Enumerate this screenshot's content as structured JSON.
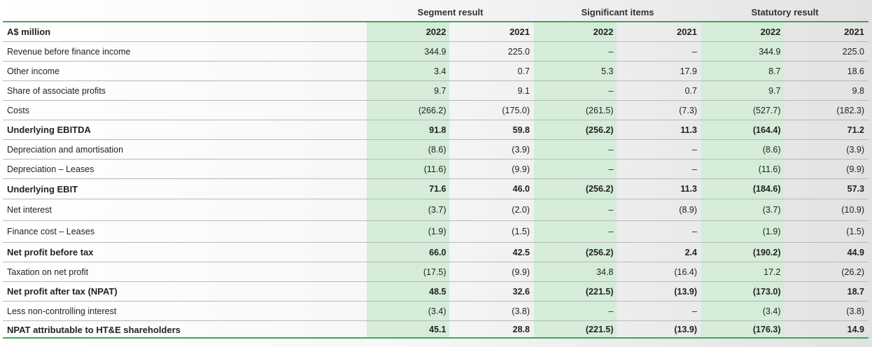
{
  "group_headers": [
    "Segment result",
    "Significant items",
    "Statutory result"
  ],
  "columns": {
    "label": "A$ million",
    "years": [
      "2022",
      "2021",
      "2022",
      "2021",
      "2022",
      "2021"
    ]
  },
  "rows": [
    {
      "label": "Revenue before finance income",
      "bold": false,
      "values": [
        "344.9",
        "225.0",
        "–",
        "–",
        "344.9",
        "225.0"
      ]
    },
    {
      "label": "Other income",
      "bold": false,
      "values": [
        "3.4",
        "0.7",
        "5.3",
        "17.9",
        "8.7",
        "18.6"
      ]
    },
    {
      "label": "Share of associate profits",
      "bold": false,
      "values": [
        "9.7",
        "9.1",
        "–",
        "0.7",
        "9.7",
        "9.8"
      ]
    },
    {
      "label": "Costs",
      "bold": false,
      "values": [
        "(266.2)",
        "(175.0)",
        "(261.5)",
        "(7.3)",
        "(527.7)",
        "(182.3)"
      ]
    },
    {
      "label": "Underlying EBITDA",
      "bold": true,
      "values": [
        "91.8",
        "59.8",
        "(256.2)",
        "11.3",
        "(164.4)",
        "71.2"
      ]
    },
    {
      "label": "Depreciation and amortisation",
      "bold": false,
      "values": [
        "(8.6)",
        "(3.9)",
        "–",
        "–",
        "(8.6)",
        "(3.9)"
      ]
    },
    {
      "label": "Depreciation – Leases",
      "bold": false,
      "values": [
        "(11.6)",
        "(9.9)",
        "–",
        "–",
        "(11.6)",
        "(9.9)"
      ]
    },
    {
      "label": "Underlying EBIT",
      "bold": true,
      "values": [
        "71.6",
        "46.0",
        "(256.2)",
        "11.3",
        "(184.6)",
        "57.3"
      ]
    },
    {
      "label": "Net interest",
      "bold": false,
      "values": [
        "(3.7)",
        "(2.0)",
        "–",
        "(8.9)",
        "(3.7)",
        "(10.9)"
      ]
    },
    {
      "label": "Finance cost – Leases",
      "bold": false,
      "values": [
        "(1.9)",
        "(1.5)",
        "–",
        "–",
        "(1.9)",
        "(1.5)"
      ]
    },
    {
      "label": "Net profit before tax",
      "bold": true,
      "values": [
        "66.0",
        "42.5",
        "(256.2)",
        "2.4",
        "(190.2)",
        "44.9"
      ]
    },
    {
      "label": "Taxation on net profit",
      "bold": false,
      "values": [
        "(17.5)",
        "(9.9)",
        "34.8",
        "(16.4)",
        "17.2",
        "(26.2)"
      ]
    },
    {
      "label": "Net profit after tax (NPAT)",
      "bold": true,
      "values": [
        "48.5",
        "32.6",
        "(221.5)",
        "(13.9)",
        "(173.0)",
        "18.7"
      ]
    },
    {
      "label": "Less non-controlling interest",
      "bold": false,
      "values": [
        "(3.4)",
        "(3.8)",
        "–",
        "–",
        "(3.4)",
        "(3.8)"
      ]
    },
    {
      "label": "NPAT attributable to HT&E shareholders",
      "bold": true,
      "values": [
        "45.1",
        "28.8",
        "(221.5)",
        "(13.9)",
        "(176.3)",
        "14.9"
      ]
    }
  ]
}
